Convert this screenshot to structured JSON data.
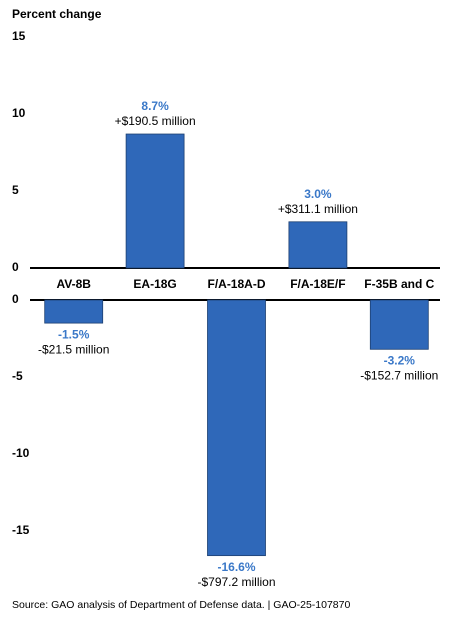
{
  "chart_data": {
    "type": "bar",
    "title": "Percent change",
    "categories": [
      "AV-8B",
      "EA-18G",
      "F/A-18A-D",
      "F/A-18E/F",
      "F-35B and C"
    ],
    "values": [
      -1.5,
      8.7,
      -16.6,
      3.0,
      -3.2
    ],
    "value_labels": [
      "-1.5%",
      "8.7%",
      "-16.6%",
      "3.0%",
      "-3.2%"
    ],
    "amount_labels": [
      "-$21.5 million",
      "+$190.5 million",
      "-$797.2 million",
      "+$311.1 million",
      "-$152.7 million"
    ],
    "color": "#2f68b9",
    "label_color": "#3a78c8",
    "ylim": [
      -17,
      15
    ],
    "yticks": [
      -15,
      -10,
      -5,
      0,
      5,
      10,
      15
    ],
    "grid": false,
    "source": "Source: GAO analysis of Department of Defense data.  |  GAO-25-107870"
  }
}
